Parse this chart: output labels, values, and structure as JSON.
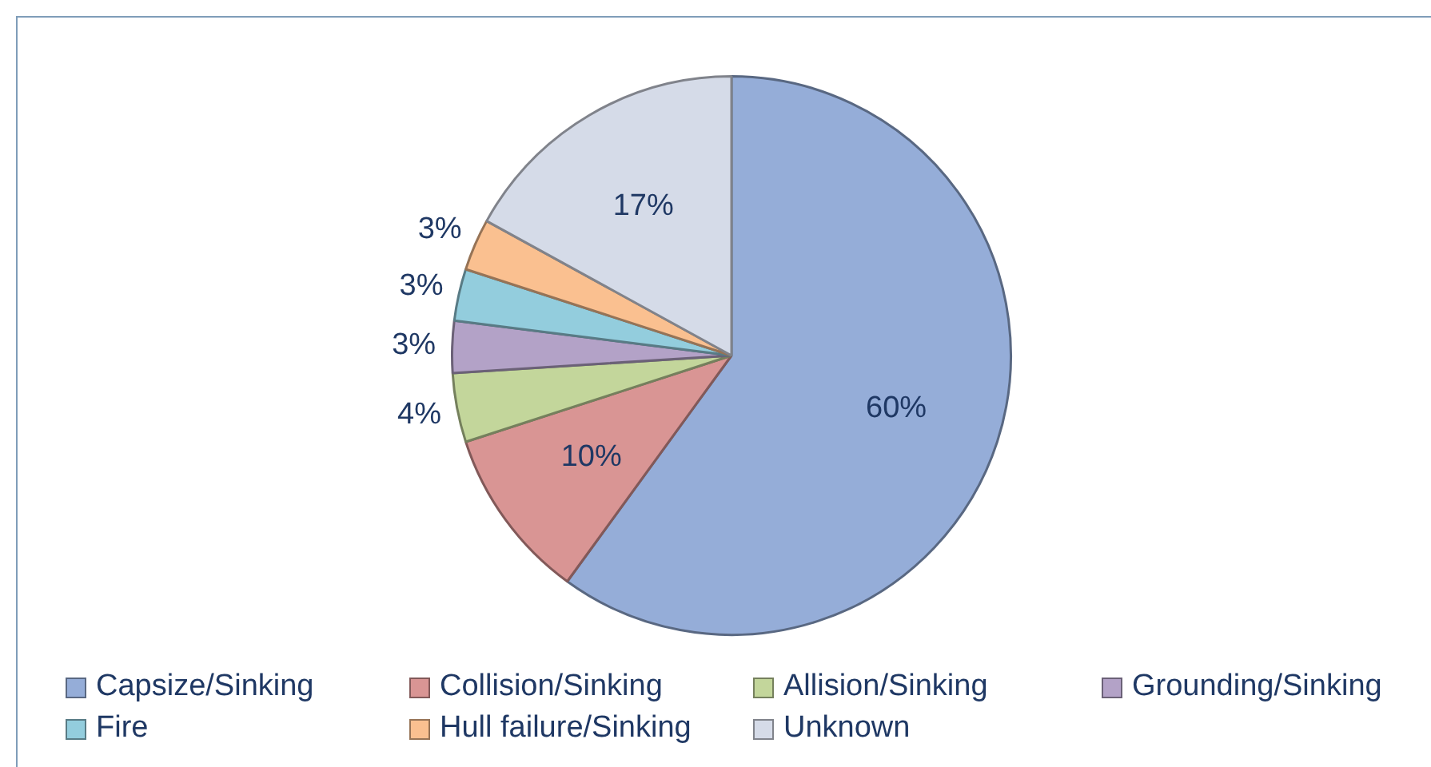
{
  "chart_data": {
    "type": "pie",
    "categories": [
      "Capsize/Sinking",
      "Collision/Sinking",
      "Allision/Sinking",
      "Grounding/Sinking",
      "Fire",
      "Hull failure/Sinking",
      "Unknown"
    ],
    "values": [
      60,
      10,
      4,
      3,
      3,
      3,
      17
    ],
    "value_labels": [
      "60%",
      "10%",
      "4%",
      "3%",
      "3%",
      "3%",
      "17%"
    ],
    "colors": [
      "#95add8",
      "#d99594",
      "#c3d69b",
      "#b3a2c7",
      "#93cddd",
      "#fac090",
      "#d5dbe8"
    ],
    "legend": "bottom"
  }
}
